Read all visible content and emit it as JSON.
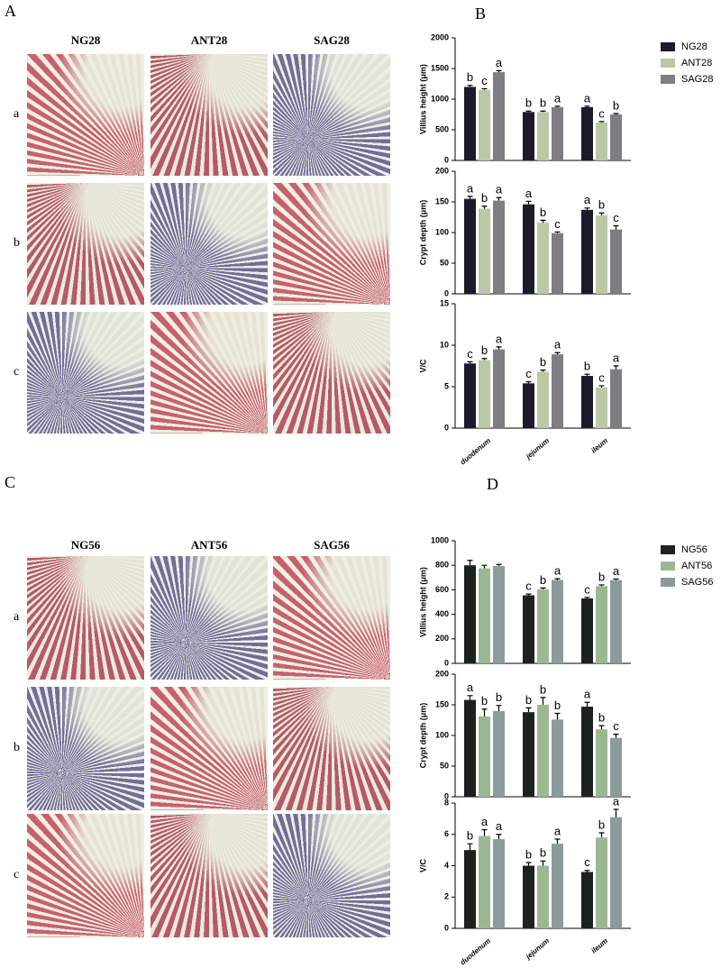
{
  "image_panels": [
    {
      "label": "A",
      "columns": [
        "NG28",
        "ANT28",
        "SAG28"
      ],
      "rows": [
        "a",
        "b",
        "c"
      ]
    },
    {
      "label": "C",
      "columns": [
        "NG56",
        "ANT56",
        "SAG56"
      ],
      "rows": [
        "a",
        "b",
        "c"
      ]
    }
  ],
  "chart_data": [
    {
      "type": "bar",
      "panel": "B",
      "categories": [
        "duodenum",
        "jejunum",
        "ileum"
      ],
      "series": [
        {
          "name": "NG28",
          "color": "#1b1b2b"
        },
        {
          "name": "ANT28",
          "color": "#bac8a6"
        },
        {
          "name": "SAG28",
          "color": "#7d7d84"
        }
      ],
      "subplots": [
        {
          "ylabel": "Villius height (μm)",
          "ylim": [
            0,
            2000
          ],
          "yticks": [
            0,
            500,
            1000,
            1500,
            2000
          ],
          "series": [
            {
              "values": [
                1200,
                790,
                870
              ],
              "errors": [
                25,
                15,
                15
              ],
              "letters": [
                "b",
                "b",
                "a"
              ]
            },
            {
              "values": [
                1150,
                790,
                620
              ],
              "errors": [
                20,
                15,
                15
              ],
              "letters": [
                "c",
                "b",
                "c"
              ]
            },
            {
              "values": [
                1440,
                870,
                750
              ],
              "errors": [
                25,
                15,
                15
              ],
              "letters": [
                "a",
                "a",
                "b"
              ]
            }
          ]
        },
        {
          "ylabel": "Crypt depth (μm)",
          "ylim": [
            0,
            200
          ],
          "yticks": [
            0,
            50,
            100,
            150,
            200
          ],
          "series": [
            {
              "values": [
                155,
                146,
                137
              ],
              "errors": [
                4,
                5,
                3
              ],
              "letters": [
                "a",
                "a",
                "a"
              ]
            },
            {
              "values": [
                139,
                116,
                128
              ],
              "errors": [
                4,
                4,
                4
              ],
              "letters": [
                "b",
                "b",
                "b"
              ]
            },
            {
              "values": [
                152,
                99,
                105
              ],
              "errors": [
                5,
                2,
                6
              ],
              "letters": [
                "a",
                "c",
                "c"
              ]
            }
          ]
        },
        {
          "ylabel": "V/C",
          "ylim": [
            0,
            15
          ],
          "yticks": [
            0,
            5,
            10,
            15
          ],
          "series": [
            {
              "values": [
                7.8,
                5.4,
                6.3
              ],
              "errors": [
                0.2,
                0.2,
                0.2
              ],
              "letters": [
                "c",
                "c",
                "b"
              ]
            },
            {
              "values": [
                8.2,
                6.8,
                4.9
              ],
              "errors": [
                0.2,
                0.2,
                0.2
              ],
              "letters": [
                "b",
                "b",
                "c"
              ]
            },
            {
              "values": [
                9.5,
                8.9,
                7.1
              ],
              "errors": [
                0.3,
                0.2,
                0.4
              ],
              "letters": [
                "a",
                "a",
                "a"
              ]
            }
          ]
        }
      ]
    },
    {
      "type": "bar",
      "panel": "D",
      "categories": [
        "duodenum",
        "jejunum",
        "ileum"
      ],
      "series": [
        {
          "name": "NG56",
          "color": "#1d211f"
        },
        {
          "name": "ANT56",
          "color": "#9cb893"
        },
        {
          "name": "SAG56",
          "color": "#8b9b9b"
        }
      ],
      "subplots": [
        {
          "ylabel": "Villius height (μm)",
          "ylim": [
            0,
            1000
          ],
          "yticks": [
            0,
            200,
            400,
            600,
            800,
            1000
          ],
          "series": [
            {
              "values": [
                800,
                555,
                530
              ],
              "errors": [
                40,
                10,
                8
              ],
              "letters": [
                null,
                "c",
                "c"
              ]
            },
            {
              "values": [
                775,
                605,
                630
              ],
              "errors": [
                25,
                10,
                10
              ],
              "letters": [
                null,
                "b",
                "b"
              ]
            },
            {
              "values": [
                795,
                680,
                680
              ],
              "errors": [
                12,
                10,
                8
              ],
              "letters": [
                null,
                "a",
                "a"
              ]
            }
          ]
        },
        {
          "ylabel": "Crypt depth (μm)",
          "ylim": [
            0,
            200
          ],
          "yticks": [
            0,
            50,
            100,
            150,
            200
          ],
          "series": [
            {
              "values": [
                158,
                138,
                147
              ],
              "errors": [
                7,
                7,
                7
              ],
              "letters": [
                "a",
                "b",
                "a"
              ]
            },
            {
              "values": [
                131,
                150,
                110
              ],
              "errors": [
                12,
                12,
                6
              ],
              "letters": [
                "b",
                "b",
                "b"
              ]
            },
            {
              "values": [
                140,
                126,
                96
              ],
              "errors": [
                9,
                10,
                6
              ],
              "letters": [
                "b",
                "b",
                "c"
              ]
            }
          ]
        },
        {
          "ylabel": "V/C",
          "ylim": [
            0,
            8
          ],
          "yticks": [
            0,
            2,
            4,
            6,
            8
          ],
          "series": [
            {
              "values": [
                5.0,
                4.0,
                3.6
              ],
              "errors": [
                0.4,
                0.2,
                0.1
              ],
              "letters": [
                "b",
                "b",
                "c"
              ]
            },
            {
              "values": [
                5.9,
                4.0,
                5.8
              ],
              "errors": [
                0.4,
                0.3,
                0.3
              ],
              "letters": [
                "a",
                "b",
                "b"
              ]
            },
            {
              "values": [
                5.7,
                5.4,
                7.1
              ],
              "errors": [
                0.3,
                0.3,
                0.5
              ],
              "letters": [
                "a",
                "a",
                "a"
              ]
            }
          ]
        }
      ]
    }
  ]
}
